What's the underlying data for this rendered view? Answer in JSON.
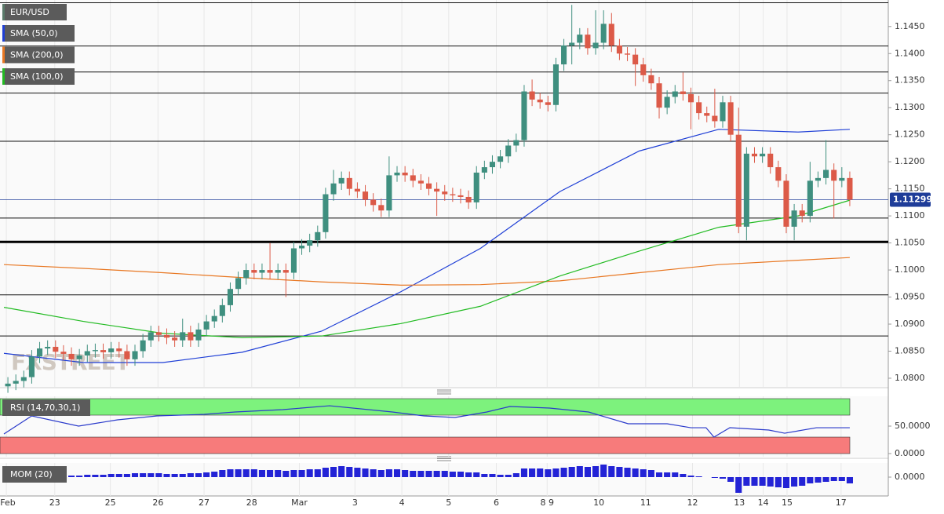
{
  "chart_data": [
    {
      "type": "candlestick",
      "title": "EUR/USD",
      "watermark": "FXSTREET",
      "xlim": [
        0,
        107
      ],
      "xticks": [
        {
          "value": 0.3,
          "label": "Feb"
        },
        {
          "value": 6.4,
          "label": "23"
        },
        {
          "value": 13.4,
          "label": "25"
        },
        {
          "value": 19.4,
          "label": "26"
        },
        {
          "value": 25.2,
          "label": "27"
        },
        {
          "value": 31.2,
          "label": "28"
        },
        {
          "value": 37.2,
          "label": "Mar"
        },
        {
          "value": 44.2,
          "label": "3"
        },
        {
          "value": 50.1,
          "label": "4"
        },
        {
          "value": 56,
          "label": "5"
        },
        {
          "value": 62,
          "label": "6"
        },
        {
          "value": 68.4,
          "label": "8 9"
        },
        {
          "value": 74.9,
          "label": "10"
        },
        {
          "value": 80.8,
          "label": "11"
        },
        {
          "value": 86.7,
          "label": "12"
        },
        {
          "value": 92.6,
          "label": "13"
        },
        {
          "value": 95.6,
          "label": "14"
        },
        {
          "value": 98.6,
          "label": "15"
        },
        {
          "value": 105.4,
          "label": "17"
        }
      ],
      "ylim": [
        1.0784,
        1.1499
      ],
      "yticks": [
        {
          "value": 1.08,
          "label": "1.0800"
        },
        {
          "value": 1.085,
          "label": "1.0850"
        },
        {
          "value": 1.09,
          "label": "1.0900"
        },
        {
          "value": 1.095,
          "label": "1.0950"
        },
        {
          "value": 1.1,
          "label": "1.1000"
        },
        {
          "value": 1.105,
          "label": "1.1050"
        },
        {
          "value": 1.11,
          "label": "1.1100"
        },
        {
          "value": 1.115,
          "label": "1.1150"
        },
        {
          "value": 1.12,
          "label": "1.1200"
        },
        {
          "value": 1.125,
          "label": "1.1250"
        },
        {
          "value": 1.13,
          "label": "1.1300"
        },
        {
          "value": 1.135,
          "label": "1.1350"
        },
        {
          "value": 1.14,
          "label": "1.1400"
        },
        {
          "value": 1.145,
          "label": "1.1450"
        }
      ],
      "up_color": "#3f8f7f",
      "down_color": "#dc5a48",
      "legend_color": "#5a7a6a",
      "levels": [
        1.1494,
        1.1414,
        1.1366,
        1.1327,
        1.1238,
        1.1096,
        1.0954,
        1.0878
      ],
      "bold_level": 1.1052,
      "last_price": 1.11299,
      "last_price_color": "#1f3d99",
      "open": [
        1.0785,
        1.079,
        1.0795,
        1.0802,
        1.084,
        1.0855,
        1.0858,
        1.0849,
        1.0845,
        1.0835,
        1.0842,
        1.085,
        1.0852,
        1.0848,
        1.0855,
        1.085,
        1.0835,
        1.085,
        1.087,
        1.0885,
        1.088,
        1.0875,
        1.087,
        1.0885,
        1.087,
        1.089,
        1.0905,
        1.0915,
        1.0935,
        1.0965,
        1.0985,
        1.1,
        1.0995,
        1.1,
        1.0995,
        1.1,
        1.0995,
        1.104,
        1.1045,
        1.1055,
        1.107,
        1.114,
        1.116,
        1.117,
        1.115,
        1.1145,
        1.113,
        1.112,
        1.111,
        1.1175,
        1.118,
        1.1175,
        1.1165,
        1.116,
        1.115,
        1.1145,
        1.114,
        1.1138,
        1.1135,
        1.1125,
        1.118,
        1.119,
        1.12,
        1.121,
        1.123,
        1.124,
        1.133,
        1.1315,
        1.131,
        1.1305,
        1.138,
        1.1415,
        1.142,
        1.1435,
        1.141,
        1.142,
        1.1455,
        1.1415,
        1.14,
        1.1398,
        1.138,
        1.136,
        1.1345,
        1.13,
        1.132,
        1.133,
        1.1325,
        1.131,
        1.129,
        1.1285,
        1.1275,
        1.131,
        1.125,
        1.108,
        1.1215,
        1.121,
        1.1215,
        1.119,
        1.1165,
        1.108,
        1.111,
        1.11,
        1.1165,
        1.117,
        1.1185,
        1.1165,
        1.117
      ],
      "high": [
        1.0802,
        1.0807,
        1.0814,
        1.0852,
        1.0867,
        1.087,
        1.087,
        1.0861,
        1.0857,
        1.0854,
        1.0862,
        1.0864,
        1.0864,
        1.0867,
        1.0867,
        1.0862,
        1.0862,
        1.0882,
        1.0897,
        1.0897,
        1.0892,
        1.0887,
        1.091,
        1.0897,
        1.0902,
        1.0917,
        1.0927,
        1.0947,
        1.0977,
        1.0997,
        1.1012,
        1.1012,
        1.1012,
        1.105,
        1.1012,
        1.1012,
        1.1052,
        1.1057,
        1.1067,
        1.1082,
        1.1152,
        1.1185,
        1.1182,
        1.1182,
        1.1162,
        1.1157,
        1.1142,
        1.1132,
        1.121,
        1.1192,
        1.1192,
        1.1187,
        1.1177,
        1.1172,
        1.1162,
        1.1157,
        1.1152,
        1.115,
        1.1147,
        1.1192,
        1.1202,
        1.1212,
        1.1222,
        1.1242,
        1.1252,
        1.1342,
        1.1352,
        1.1327,
        1.1322,
        1.1392,
        1.1427,
        1.149,
        1.1447,
        1.1447,
        1.148,
        1.148,
        1.1475,
        1.1427,
        1.1412,
        1.141,
        1.1392,
        1.1372,
        1.1357,
        1.1332,
        1.1342,
        1.1365,
        1.1337,
        1.1322,
        1.1302,
        1.1335,
        1.1322,
        1.1322,
        1.13,
        1.1227,
        1.1227,
        1.1227,
        1.1227,
        1.1202,
        1.1177,
        1.1122,
        1.1122,
        1.12,
        1.1182,
        1.124,
        1.1197,
        1.119,
        1.1182
      ],
      "low": [
        1.0773,
        1.0778,
        1.0783,
        1.079,
        1.0828,
        1.0843,
        1.0837,
        1.0833,
        1.0823,
        1.0823,
        1.083,
        1.0838,
        1.0836,
        1.0836,
        1.0838,
        1.0823,
        1.0823,
        1.0838,
        1.0858,
        1.0868,
        1.0863,
        1.0858,
        1.0858,
        1.0858,
        1.0858,
        1.0878,
        1.0893,
        1.0903,
        1.0923,
        1.0953,
        1.0973,
        1.0983,
        1.0983,
        1.0983,
        1.0983,
        1.095,
        1.0983,
        1.1028,
        1.1033,
        1.1043,
        1.1058,
        1.1128,
        1.1148,
        1.1138,
        1.1133,
        1.1118,
        1.1108,
        1.1098,
        1.1098,
        1.1163,
        1.1163,
        1.1153,
        1.1148,
        1.1138,
        1.11,
        1.1128,
        1.1126,
        1.1123,
        1.1113,
        1.1113,
        1.1168,
        1.1178,
        1.1188,
        1.1198,
        1.1218,
        1.1228,
        1.1303,
        1.1298,
        1.1293,
        1.1293,
        1.1368,
        1.138,
        1.1408,
        1.1398,
        1.1398,
        1.1408,
        1.1403,
        1.1388,
        1.1386,
        1.134,
        1.1348,
        1.1333,
        1.128,
        1.1288,
        1.1308,
        1.1313,
        1.126,
        1.1278,
        1.1273,
        1.1263,
        1.1263,
        1.1238,
        1.1068,
        1.1055,
        1.1198,
        1.1198,
        1.1178,
        1.1153,
        1.1068,
        1.1055,
        1.1088,
        1.1088,
        1.1153,
        1.1158,
        1.1095,
        1.1153,
        1.1118
      ],
      "close": [
        1.079,
        1.0795,
        1.0802,
        1.084,
        1.0855,
        1.0858,
        1.0849,
        1.0845,
        1.0835,
        1.0842,
        1.085,
        1.0852,
        1.0848,
        1.0855,
        1.085,
        1.0835,
        1.085,
        1.087,
        1.0885,
        1.088,
        1.0875,
        1.087,
        1.0885,
        1.087,
        1.089,
        1.0905,
        1.0915,
        1.0935,
        1.0965,
        1.0985,
        1.1,
        1.0995,
        1.1,
        1.0995,
        1.1,
        1.0995,
        1.104,
        1.1045,
        1.1055,
        1.107,
        1.114,
        1.116,
        1.117,
        1.115,
        1.1145,
        1.113,
        1.112,
        1.111,
        1.1175,
        1.118,
        1.1175,
        1.1165,
        1.116,
        1.115,
        1.1145,
        1.114,
        1.1138,
        1.1135,
        1.1125,
        1.118,
        1.119,
        1.12,
        1.121,
        1.123,
        1.124,
        1.133,
        1.1315,
        1.131,
        1.1305,
        1.138,
        1.1415,
        1.142,
        1.1435,
        1.141,
        1.142,
        1.1455,
        1.1415,
        1.14,
        1.1398,
        1.138,
        1.136,
        1.1345,
        1.13,
        1.132,
        1.133,
        1.1325,
        1.131,
        1.129,
        1.1285,
        1.1275,
        1.131,
        1.125,
        1.108,
        1.1215,
        1.121,
        1.1215,
        1.119,
        1.1165,
        1.108,
        1.111,
        1.11,
        1.1165,
        1.117,
        1.1185,
        1.1165,
        1.117,
        1.113
      ],
      "series": [
        {
          "name": "SMA (50,0)",
          "color": "#1f3fd6",
          "x": [
            0,
            10,
            20,
            30,
            40,
            50,
            60,
            70,
            80,
            90,
            100,
            106.5
          ],
          "values": [
            1.0846,
            1.0829,
            1.0829,
            1.0848,
            1.0887,
            1.096,
            1.104,
            1.1145,
            1.122,
            1.126,
            1.1255,
            1.126
          ]
        },
        {
          "name": "SMA (200,0)",
          "color": "#e87722",
          "x": [
            0,
            10,
            20,
            30,
            40,
            50,
            60,
            70,
            80,
            90,
            100,
            106.5
          ],
          "values": [
            1.101,
            1.1003,
            1.0995,
            1.0986,
            1.0978,
            1.0972,
            1.0973,
            1.098,
            1.0995,
            1.101,
            1.1018,
            1.1023
          ]
        },
        {
          "name": "SMA (100,0)",
          "color": "#22bb22",
          "x": [
            0,
            10,
            20,
            30,
            40,
            50,
            60,
            70,
            80,
            90,
            100,
            106.5
          ],
          "values": [
            1.0931,
            1.0905,
            1.0883,
            1.0875,
            1.0878,
            1.0901,
            1.0933,
            1.0989,
            1.1035,
            1.1079,
            1.11,
            1.1129
          ]
        }
      ]
    },
    {
      "type": "line",
      "title": "RSI (14,70,30,1)",
      "color": "#2a3acb",
      "xlim": [
        0,
        107
      ],
      "ylim": [
        -5.7,
        104.3
      ],
      "yticks": [
        {
          "value": 50,
          "label": "50.0000"
        },
        {
          "value": 0,
          "label": "0.0000"
        }
      ],
      "overbought_zone": [
        70,
        100
      ],
      "overbought_color": "#7df27d",
      "oversold_zone": [
        0,
        30
      ],
      "oversold_color": "#f77b7b",
      "x": [
        0,
        3.5,
        9.4,
        14.3,
        19.3,
        25.2,
        29.1,
        35.1,
        41,
        48.9,
        52.9,
        56.8,
        60.8,
        63.7,
        68.7,
        73.6,
        78.6,
        83.5,
        86.5,
        88.4,
        89.4,
        91.4,
        96.3,
        98.3,
        102.3,
        106.5
      ],
      "values": [
        35.7,
        68.6,
        50,
        61.4,
        68.6,
        71.4,
        75.7,
        80,
        87.1,
        75.7,
        68.6,
        65.7,
        75.7,
        85.7,
        82.9,
        75.7,
        54.3,
        54.3,
        47.1,
        47.1,
        30,
        47.1,
        42.9,
        37.1,
        47.1,
        47.1
      ]
    },
    {
      "type": "bar",
      "title": "MOM (20)",
      "color": "#2323d6",
      "xlim": [
        0,
        107
      ],
      "ylim": [
        -0.024,
        0.018
      ],
      "yticks": [
        {
          "value": 0,
          "label": "0.0000"
        }
      ],
      "values": [
        -0.001,
        -0.001,
        0,
        0,
        0.001,
        0.001,
        0.001,
        0.001,
        0.002,
        0.002,
        0.003,
        0.003,
        0.003,
        0.004,
        0.004,
        0.004,
        0.005,
        0.005,
        0.005,
        0.005,
        0.004,
        0.004,
        0.004,
        0.005,
        0.005,
        0.006,
        0.007,
        0.009,
        0.01,
        0.01,
        0.01,
        0.01,
        0.009,
        0.009,
        0.009,
        0.008,
        0.009,
        0.009,
        0.01,
        0.01,
        0.012,
        0.013,
        0.014,
        0.013,
        0.012,
        0.011,
        0.01,
        0.009,
        0.01,
        0.01,
        0.009,
        0.008,
        0.008,
        0.008,
        0.008,
        0.008,
        0.007,
        0.007,
        0.006,
        0.006,
        0.004,
        0.004,
        0.003,
        0.003,
        0.005,
        0.011,
        0.011,
        0.011,
        0.01,
        0.011,
        0.012,
        0.013,
        0.014,
        0.013,
        0.014,
        0.016,
        0.014,
        0.013,
        0.012,
        0.011,
        0.01,
        0.009,
        0.006,
        0.006,
        0.006,
        0.004,
        0.002,
        0.001,
        0,
        -0.001,
        -0.002,
        -0.006,
        -0.02,
        -0.011,
        -0.011,
        -0.011,
        -0.012,
        -0.013,
        -0.014,
        -0.012,
        -0.011,
        -0.008,
        -0.007,
        -0.006,
        -0.005,
        -0.005,
        -0.008
      ]
    }
  ]
}
